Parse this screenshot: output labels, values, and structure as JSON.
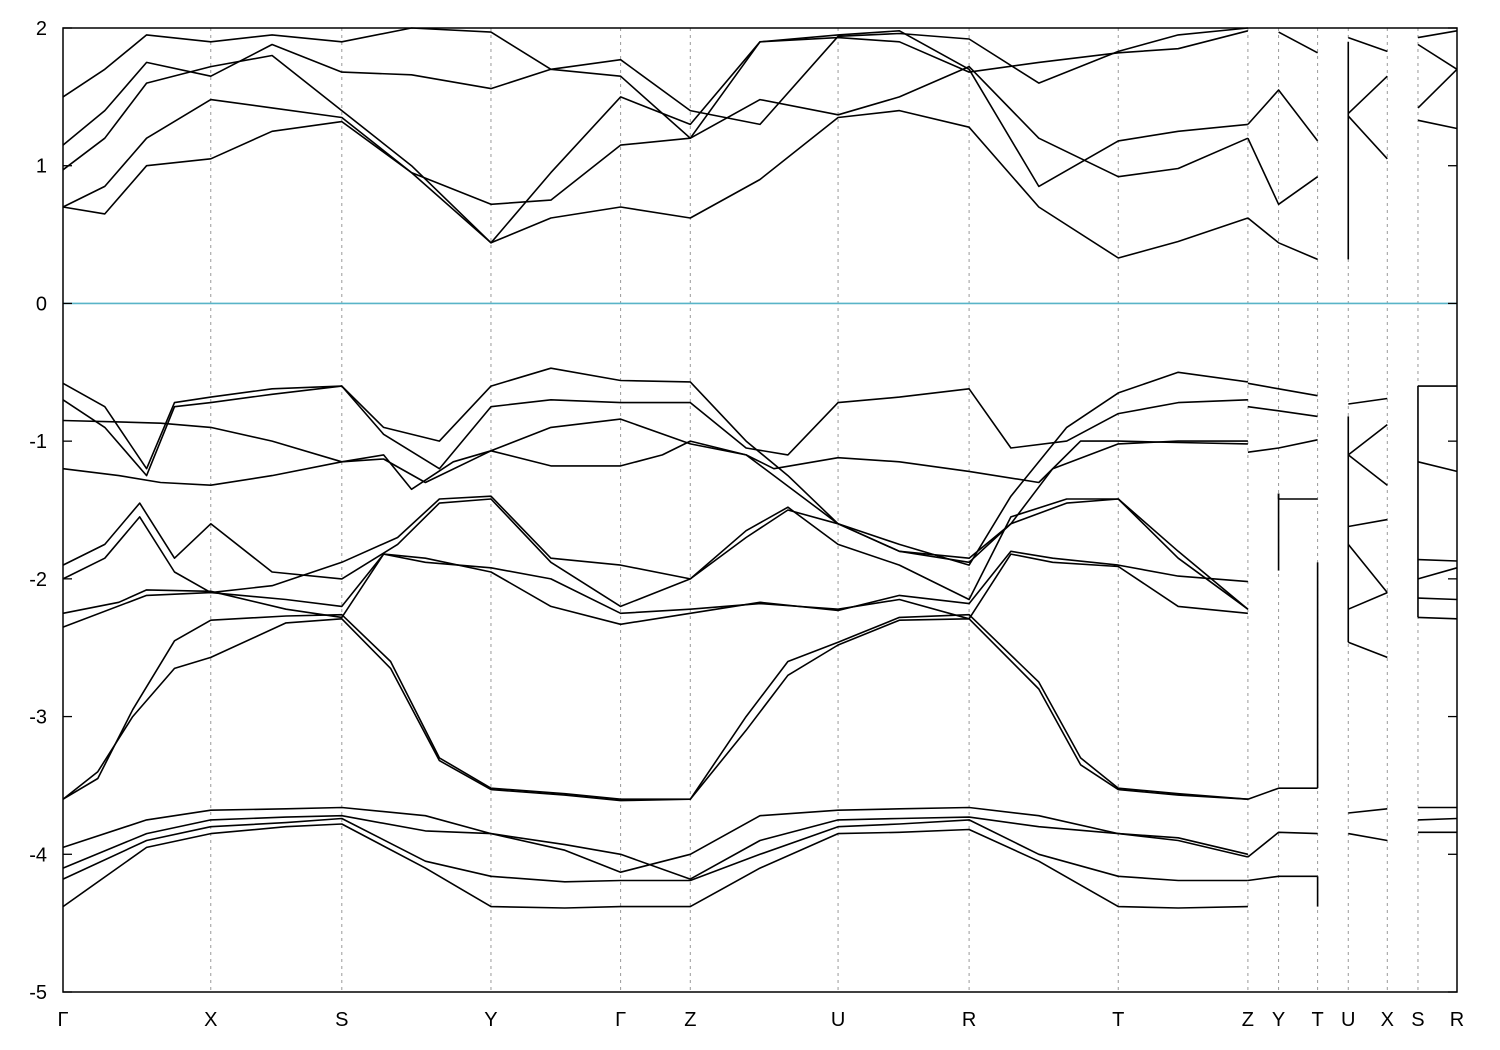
{
  "chart_data": {
    "type": "line",
    "title": "",
    "xlabel": "",
    "ylabel": "",
    "ylim": [
      -5,
      2
    ],
    "yticks": [
      -5,
      -4,
      -3,
      -2,
      -1,
      0,
      1,
      2
    ],
    "fermi_level": 0,
    "colors": {
      "bands": "#000000",
      "fermi_line": "#59b4c8",
      "kpath_lines": "#999999"
    },
    "kpoints": [
      {
        "label": "Γ",
        "x": 0.0
      },
      {
        "label": "X",
        "x": 1.06
      },
      {
        "label": "S",
        "x": 2.0
      },
      {
        "label": "Y",
        "x": 3.07
      },
      {
        "label": "Γ",
        "x": 4.0
      },
      {
        "label": "Z",
        "x": 4.5
      },
      {
        "label": "U",
        "x": 5.56
      },
      {
        "label": "R",
        "x": 6.5
      },
      {
        "label": "T",
        "x": 7.57
      },
      {
        "label": "Z",
        "x": 8.5
      },
      {
        "label": "Y",
        "x": 8.72
      },
      {
        "label": "T",
        "x": 9.0
      },
      {
        "label": "U",
        "x": 9.22
      },
      {
        "label": "X",
        "x": 9.5
      },
      {
        "label": "S",
        "x": 9.72
      },
      {
        "label": "R",
        "x": 10.0
      }
    ],
    "bands": [
      {
        "x": [
          0,
          0.6,
          1.06,
          1.6,
          2.0,
          2.6,
          3.07,
          3.6,
          4.0,
          4.5,
          5.0,
          5.56,
          6.0,
          6.5,
          7.0,
          7.57,
          8.0,
          8.5
        ],
        "y": [
          -4.38,
          -3.95,
          -3.85,
          -3.8,
          -3.78,
          -4.1,
          -4.38,
          -4.39,
          -4.38,
          -4.38,
          -4.1,
          -3.85,
          -3.84,
          -3.82,
          -4.05,
          -4.38,
          -4.39,
          -4.38
        ]
      },
      {
        "x": [
          0,
          0.6,
          1.06,
          1.6,
          2.0,
          2.6,
          3.07,
          3.6,
          4.0,
          4.5,
          5.0,
          5.56,
          6.0,
          6.5,
          7.0,
          7.57,
          8.0,
          8.5
        ],
        "y": [
          -4.18,
          -3.9,
          -3.8,
          -3.77,
          -3.74,
          -4.05,
          -4.16,
          -4.2,
          -4.19,
          -4.19,
          -4.0,
          -3.8,
          -3.78,
          -3.75,
          -4.0,
          -4.16,
          -4.19,
          -4.19
        ]
      },
      {
        "x": [
          0,
          0.6,
          1.06,
          1.6,
          2.0,
          2.6,
          3.07,
          3.6,
          4.0,
          4.5,
          5.0,
          5.56,
          6.0,
          6.5,
          7.0,
          7.57,
          8.0,
          8.5
        ],
        "y": [
          -4.1,
          -3.85,
          -3.75,
          -3.73,
          -3.72,
          -3.83,
          -3.85,
          -3.93,
          -4.0,
          -4.18,
          -3.9,
          -3.75,
          -3.74,
          -3.73,
          -3.8,
          -3.85,
          -3.9,
          -4.02
        ]
      },
      {
        "x": [
          0,
          0.6,
          1.06,
          1.6,
          2.0,
          2.6,
          3.07,
          3.6,
          4.0,
          4.5,
          5.0,
          5.56,
          6.0,
          6.5,
          7.0,
          7.57,
          8.0,
          8.5
        ],
        "y": [
          -3.95,
          -3.75,
          -3.68,
          -3.67,
          -3.66,
          -3.72,
          -3.85,
          -3.97,
          -4.13,
          -4.0,
          -3.72,
          -3.68,
          -3.67,
          -3.66,
          -3.72,
          -3.85,
          -3.88,
          -4.0
        ]
      },
      {
        "x": [
          0,
          0.25,
          0.5,
          0.8,
          1.06,
          1.6,
          2.0,
          2.35,
          2.7,
          3.07,
          3.6,
          4.0,
          4.5,
          4.9,
          5.2,
          5.56,
          6.0,
          6.5,
          7.0,
          7.3,
          7.57,
          8.0,
          8.5
        ],
        "y": [
          -3.6,
          -3.45,
          -2.95,
          -2.45,
          -2.3,
          -2.27,
          -2.26,
          -2.6,
          -3.3,
          -3.52,
          -3.56,
          -3.6,
          -3.6,
          -3.0,
          -2.6,
          -2.46,
          -2.28,
          -2.26,
          -2.75,
          -3.3,
          -3.52,
          -3.56,
          -3.6
        ]
      },
      {
        "x": [
          0,
          0.25,
          0.5,
          0.8,
          1.06,
          1.6,
          2.0,
          2.35,
          2.7,
          3.07,
          3.6,
          4.0,
          4.5,
          4.9,
          5.2,
          5.56,
          6.0,
          6.5,
          7.0,
          7.3,
          7.57,
          8.0,
          8.5
        ],
        "y": [
          -3.6,
          -3.4,
          -3.0,
          -2.65,
          -2.57,
          -2.32,
          -2.29,
          -2.65,
          -3.32,
          -3.53,
          -3.57,
          -3.61,
          -3.6,
          -3.1,
          -2.7,
          -2.48,
          -2.3,
          -2.29,
          -2.8,
          -3.35,
          -3.53,
          -3.57,
          -3.6
        ]
      },
      {
        "x": [
          0,
          0.6,
          1.06,
          1.6,
          2.0,
          2.3,
          2.6,
          3.07,
          3.5,
          4.0,
          4.5,
          5.0,
          5.56,
          6.0,
          6.5,
          6.8,
          7.1,
          7.57,
          8.0,
          8.5
        ],
        "y": [
          -2.35,
          -2.12,
          -2.1,
          -2.15,
          -2.2,
          -1.82,
          -1.85,
          -1.95,
          -2.2,
          -2.33,
          -2.25,
          -2.17,
          -2.23,
          -2.12,
          -2.18,
          -1.8,
          -1.85,
          -1.9,
          -1.98,
          -2.02
        ]
      },
      {
        "x": [
          0,
          0.4,
          0.6,
          1.06,
          1.6,
          2.0,
          2.3,
          2.6,
          3.07,
          3.5,
          4.0,
          4.5,
          5.0,
          5.56,
          6.0,
          6.5,
          6.8,
          7.1,
          7.57,
          8.0,
          8.5
        ],
        "y": [
          -2.25,
          -2.17,
          -2.08,
          -2.09,
          -2.22,
          -2.28,
          -1.82,
          -1.88,
          -1.92,
          -2.0,
          -2.25,
          -2.22,
          -2.18,
          -2.22,
          -2.15,
          -2.29,
          -1.82,
          -1.88,
          -1.91,
          -2.2,
          -2.25
        ]
      },
      {
        "x": [
          0,
          0.3,
          0.55,
          0.8,
          1.06,
          1.5,
          2.0,
          2.4,
          2.7,
          3.07,
          3.5,
          4.0,
          4.5,
          4.9,
          5.2,
          5.56,
          6.0,
          6.5,
          6.8,
          7.2,
          7.57,
          8.0,
          8.5
        ],
        "y": [
          -2.0,
          -1.85,
          -1.55,
          -1.95,
          -2.1,
          -2.05,
          -1.88,
          -1.7,
          -1.42,
          -1.4,
          -1.85,
          -1.9,
          -2.0,
          -1.65,
          -1.48,
          -1.75,
          -1.9,
          -2.15,
          -1.55,
          -1.42,
          -1.42,
          -1.8,
          -2.22
        ]
      },
      {
        "x": [
          0,
          0.3,
          0.55,
          0.8,
          1.06,
          1.5,
          2.0,
          2.4,
          2.7,
          3.07,
          3.5,
          4.0,
          4.5,
          4.9,
          5.2,
          5.56,
          6.0,
          6.5,
          6.8,
          7.2,
          7.57,
          8.0,
          8.5
        ],
        "y": [
          -1.9,
          -1.75,
          -1.45,
          -1.85,
          -1.6,
          -1.95,
          -2.0,
          -1.75,
          -1.45,
          -1.42,
          -1.88,
          -2.2,
          -2.0,
          -1.7,
          -1.5,
          -1.6,
          -1.8,
          -1.85,
          -1.6,
          -1.45,
          -1.42,
          -1.85,
          -2.22
        ]
      },
      {
        "x": [
          0,
          0.4,
          0.7,
          1.06,
          1.5,
          2.0,
          2.3,
          2.5,
          2.8,
          3.07,
          3.5,
          4.0,
          4.5,
          4.9,
          5.1,
          5.56,
          6.0,
          6.5,
          6.8,
          7.1,
          7.57,
          8.0,
          8.5
        ],
        "y": [
          -1.2,
          -1.25,
          -1.3,
          -1.32,
          -1.25,
          -1.15,
          -1.1,
          -1.35,
          -1.15,
          -1.07,
          -0.9,
          -0.84,
          -1.02,
          -1.1,
          -1.25,
          -1.6,
          -1.8,
          -1.88,
          -1.6,
          -1.2,
          -1.02,
          -1.0,
          -1.0
        ]
      },
      {
        "x": [
          0,
          0.4,
          0.7,
          1.06,
          1.5,
          2.0,
          2.3,
          2.6,
          3.07,
          3.5,
          4.0,
          4.3,
          4.5,
          4.9,
          5.1,
          5.56,
          6.0,
          6.5,
          7.0,
          7.3,
          7.57,
          8.0,
          8.5
        ],
        "y": [
          -0.85,
          -0.86,
          -0.87,
          -0.9,
          -1.0,
          -1.15,
          -1.13,
          -1.3,
          -1.07,
          -1.18,
          -1.18,
          -1.1,
          -1.0,
          -1.1,
          -1.2,
          -1.12,
          -1.15,
          -1.22,
          -1.3,
          -1.0,
          -1.0,
          -1.01,
          -1.02
        ]
      },
      {
        "x": [
          0,
          0.3,
          0.6,
          0.8,
          1.06,
          1.5,
          2.0,
          2.3,
          2.7,
          3.07,
          3.5,
          4.0,
          4.5,
          4.9,
          5.2,
          5.56,
          6.0,
          6.5,
          6.8,
          7.2,
          7.57,
          8.0,
          8.5
        ],
        "y": [
          -0.7,
          -0.9,
          -1.25,
          -0.75,
          -0.72,
          -0.66,
          -0.6,
          -0.95,
          -1.2,
          -0.75,
          -0.7,
          -0.72,
          -0.72,
          -1.05,
          -1.1,
          -0.72,
          -0.68,
          -0.62,
          -1.05,
          -1.0,
          -0.8,
          -0.72,
          -0.7
        ]
      },
      {
        "x": [
          0,
          0.3,
          0.6,
          0.8,
          1.06,
          1.5,
          2.0,
          2.3,
          2.7,
          3.07,
          3.5,
          4.0,
          4.5,
          4.9,
          5.2,
          5.56,
          6.0,
          6.5,
          6.8,
          7.2,
          7.57,
          8.0,
          8.5
        ],
        "y": [
          -0.58,
          -0.75,
          -1.2,
          -0.72,
          -0.68,
          -0.62,
          -0.6,
          -0.9,
          -1.0,
          -0.6,
          -0.47,
          -0.56,
          -0.57,
          -1.0,
          -1.25,
          -1.6,
          -1.75,
          -1.9,
          -1.4,
          -0.9,
          -0.65,
          -0.5,
          -0.57
        ]
      },
      {
        "x": [
          0,
          0.3,
          0.6,
          1.06,
          1.5,
          2.0,
          2.5,
          3.07,
          3.5,
          4.0,
          4.5,
          5.0,
          5.56,
          6.0,
          6.5,
          7.0,
          7.57,
          8.0,
          8.5
        ],
        "y": [
          0.7,
          0.65,
          1.0,
          1.05,
          1.25,
          1.32,
          0.95,
          0.44,
          0.62,
          0.7,
          0.62,
          0.9,
          1.35,
          1.4,
          1.28,
          0.7,
          0.33,
          0.45,
          0.62
        ]
      },
      {
        "x": [
          0,
          0.3,
          0.6,
          1.06,
          1.5,
          2.0,
          2.5,
          3.07,
          3.5,
          4.0,
          4.5,
          5.0,
          5.56,
          6.0,
          6.5,
          7.0,
          7.57,
          8.0,
          8.5
        ],
        "y": [
          0.7,
          0.85,
          1.2,
          1.48,
          1.42,
          1.35,
          0.95,
          0.72,
          0.75,
          1.15,
          1.2,
          1.48,
          1.37,
          1.5,
          1.72,
          1.2,
          0.92,
          0.98,
          1.2
        ]
      },
      {
        "x": [
          0,
          0.3,
          0.6,
          1.06,
          1.5,
          2.0,
          2.5,
          3.07,
          3.5,
          4.0,
          4.5,
          5.0,
          5.56,
          6.0,
          6.5,
          7.0,
          7.57,
          8.0,
          8.5
        ],
        "y": [
          0.97,
          1.2,
          1.6,
          1.72,
          1.8,
          1.4,
          1.0,
          0.44,
          0.95,
          1.5,
          1.3,
          1.9,
          1.93,
          1.9,
          1.68,
          1.75,
          1.82,
          1.85,
          1.98
        ]
      },
      {
        "x": [
          0,
          0.3,
          0.6,
          1.06,
          1.5,
          2.0,
          2.5,
          3.07,
          3.5,
          4.0,
          4.5,
          5.0,
          5.56,
          6.0,
          6.5,
          7.0,
          7.57,
          8.0,
          8.5
        ],
        "y": [
          1.15,
          1.4,
          1.75,
          1.65,
          1.88,
          1.68,
          1.66,
          1.56,
          1.7,
          1.65,
          1.2,
          1.9,
          1.95,
          1.98,
          1.7,
          0.85,
          1.18,
          1.25,
          1.3
        ]
      },
      {
        "x": [
          0,
          0.3,
          0.6,
          1.06,
          1.5,
          2.0,
          2.5,
          3.07,
          3.5,
          4.0,
          4.5,
          5.0,
          5.56,
          6.0,
          6.5,
          7.0,
          7.57,
          8.0,
          8.5
        ],
        "y": [
          1.5,
          1.7,
          1.95,
          1.9,
          1.95,
          1.9,
          2.0,
          1.97,
          1.7,
          1.77,
          1.4,
          1.3,
          1.94,
          1.96,
          1.92,
          1.6,
          1.83,
          1.95,
          2.0
        ]
      },
      {
        "x": [
          8.72,
          8.72,
          9.0
        ],
        "y": [
          -1.38,
          -1.42,
          -1.42
        ]
      },
      {
        "x": [
          8.5,
          8.72,
          9.0
        ],
        "y": [
          -0.75,
          -0.78,
          -0.82
        ]
      },
      {
        "x": [
          8.5,
          8.72,
          9.0
        ],
        "y": [
          -1.08,
          -1.05,
          -0.99
        ]
      },
      {
        "x": [
          8.5,
          8.72,
          9.0
        ],
        "y": [
          -0.58,
          -0.62,
          -0.67
        ]
      },
      {
        "x": [
          8.5,
          8.72,
          9.0
        ],
        "y": [
          -3.6,
          -3.52,
          -3.52
        ]
      },
      {
        "x": [
          8.5,
          8.72,
          9.0
        ],
        "y": [
          -4.19,
          -4.16,
          -4.16
        ]
      },
      {
        "x": [
          8.5,
          8.72,
          9.0
        ],
        "y": [
          -4.02,
          -3.84,
          -3.85
        ]
      },
      {
        "x": [
          8.5,
          8.72,
          9.0
        ],
        "y": [
          0.62,
          0.44,
          0.32
        ]
      },
      {
        "x": [
          8.5,
          8.72,
          9.0
        ],
        "y": [
          1.2,
          0.72,
          0.92
        ]
      },
      {
        "x": [
          8.5,
          8.72,
          9.0
        ],
        "y": [
          1.3,
          1.55,
          1.18
        ]
      },
      {
        "x": [
          8.72,
          9.0
        ],
        "y": [
          1.97,
          1.82
        ]
      },
      {
        "x": [
          9.22,
          9.5
        ],
        "y": [
          -2.46,
          -2.57
        ]
      },
      {
        "x": [
          9.22,
          9.5
        ],
        "y": [
          -2.22,
          -2.1
        ]
      },
      {
        "x": [
          9.22,
          9.5
        ],
        "y": [
          -1.75,
          -2.1
        ]
      },
      {
        "x": [
          9.22,
          9.5
        ],
        "y": [
          -1.62,
          -1.57
        ]
      },
      {
        "x": [
          9.22,
          9.5
        ],
        "y": [
          -1.1,
          -0.88
        ]
      },
      {
        "x": [
          9.22,
          9.5
        ],
        "y": [
          -1.1,
          -1.32
        ]
      },
      {
        "x": [
          9.22,
          9.5
        ],
        "y": [
          -0.73,
          -0.69
        ]
      },
      {
        "x": [
          9.22,
          9.5
        ],
        "y": [
          -3.85,
          -3.9
        ]
      },
      {
        "x": [
          9.22,
          9.5
        ],
        "y": [
          -3.7,
          -3.67
        ]
      },
      {
        "x": [
          9.22,
          9.5
        ],
        "y": [
          1.36,
          1.05
        ]
      },
      {
        "x": [
          9.22,
          9.5
        ],
        "y": [
          1.38,
          1.65
        ]
      },
      {
        "x": [
          9.22,
          9.5
        ],
        "y": [
          1.93,
          1.83
        ]
      },
      {
        "x": [
          9.72,
          10.0
        ],
        "y": [
          -0.6,
          -0.6
        ]
      },
      {
        "x": [
          9.72,
          10.0
        ],
        "y": [
          -1.15,
          -1.22
        ]
      },
      {
        "x": [
          9.72,
          10.0
        ],
        "y": [
          -1.86,
          -1.87
        ]
      },
      {
        "x": [
          9.72,
          10.0
        ],
        "y": [
          -2.0,
          -1.92
        ]
      },
      {
        "x": [
          9.72,
          10.0
        ],
        "y": [
          -2.14,
          -2.15
        ]
      },
      {
        "x": [
          9.72,
          10.0
        ],
        "y": [
          -2.28,
          -2.29
        ]
      },
      {
        "x": [
          9.72,
          10.0
        ],
        "y": [
          -3.66,
          -3.66
        ]
      },
      {
        "x": [
          9.72,
          10.0
        ],
        "y": [
          -3.75,
          -3.74
        ]
      },
      {
        "x": [
          9.72,
          10.0
        ],
        "y": [
          -3.84,
          -3.84
        ]
      },
      {
        "x": [
          9.72,
          10.0
        ],
        "y": [
          1.33,
          1.27
        ]
      },
      {
        "x": [
          9.72,
          10.0
        ],
        "y": [
          1.42,
          1.7
        ]
      },
      {
        "x": [
          9.72,
          10.0
        ],
        "y": [
          1.88,
          1.7
        ]
      },
      {
        "x": [
          9.72,
          10.0
        ],
        "y": [
          1.93,
          1.98
        ]
      }
    ]
  }
}
